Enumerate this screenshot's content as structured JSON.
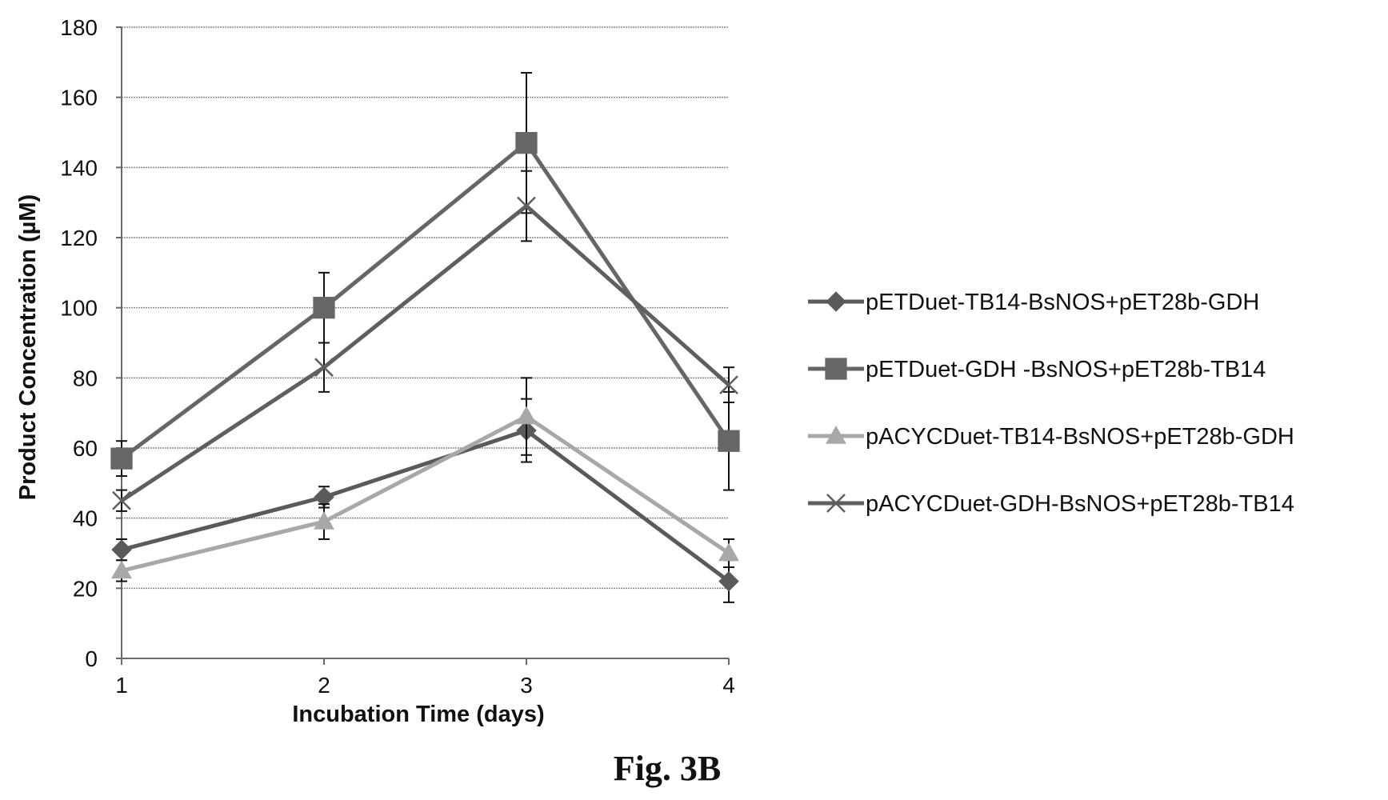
{
  "figure": {
    "caption": "Fig. 3B"
  },
  "chart_data": {
    "type": "line",
    "xlabel": "Incubation Time (days)",
    "ylabel": "Product Concentration (µM)",
    "x": [
      1,
      2,
      3,
      4
    ],
    "x_ticks": [
      "1",
      "2",
      "3",
      "4"
    ],
    "xlim": [
      1,
      4
    ],
    "ylim": [
      0,
      180
    ],
    "y_ticks": [
      0,
      20,
      40,
      60,
      80,
      100,
      120,
      140,
      160,
      180
    ],
    "grid": "horizontal",
    "legend_position": "right",
    "series": [
      {
        "name": "pETDuet-TB14-BsNOS+pET28b-GDH",
        "marker": "diamond",
        "color": "#5a5a5a",
        "values": [
          31,
          46,
          65,
          22
        ],
        "errors": [
          3,
          3,
          9,
          6
        ]
      },
      {
        "name": "pETDuet-GDH -BsNOS+pET28b-TB14",
        "marker": "square",
        "color": "#666666",
        "values": [
          57,
          100,
          147,
          62
        ],
        "errors": [
          5,
          10,
          20,
          14
        ]
      },
      {
        "name": "pACYCDuet-TB14-BsNOS+pET28b-GDH",
        "marker": "triangle",
        "color": "#a8a8a8",
        "values": [
          25,
          39,
          69,
          30
        ],
        "errors": [
          3,
          5,
          11,
          4
        ]
      },
      {
        "name": "pACYCDuet-GDH-BsNOS+pET28b-TB14",
        "marker": "x",
        "color": "#5f5f5f",
        "values": [
          45,
          83,
          129,
          78
        ],
        "errors": [
          3,
          7,
          10,
          5
        ]
      }
    ]
  }
}
